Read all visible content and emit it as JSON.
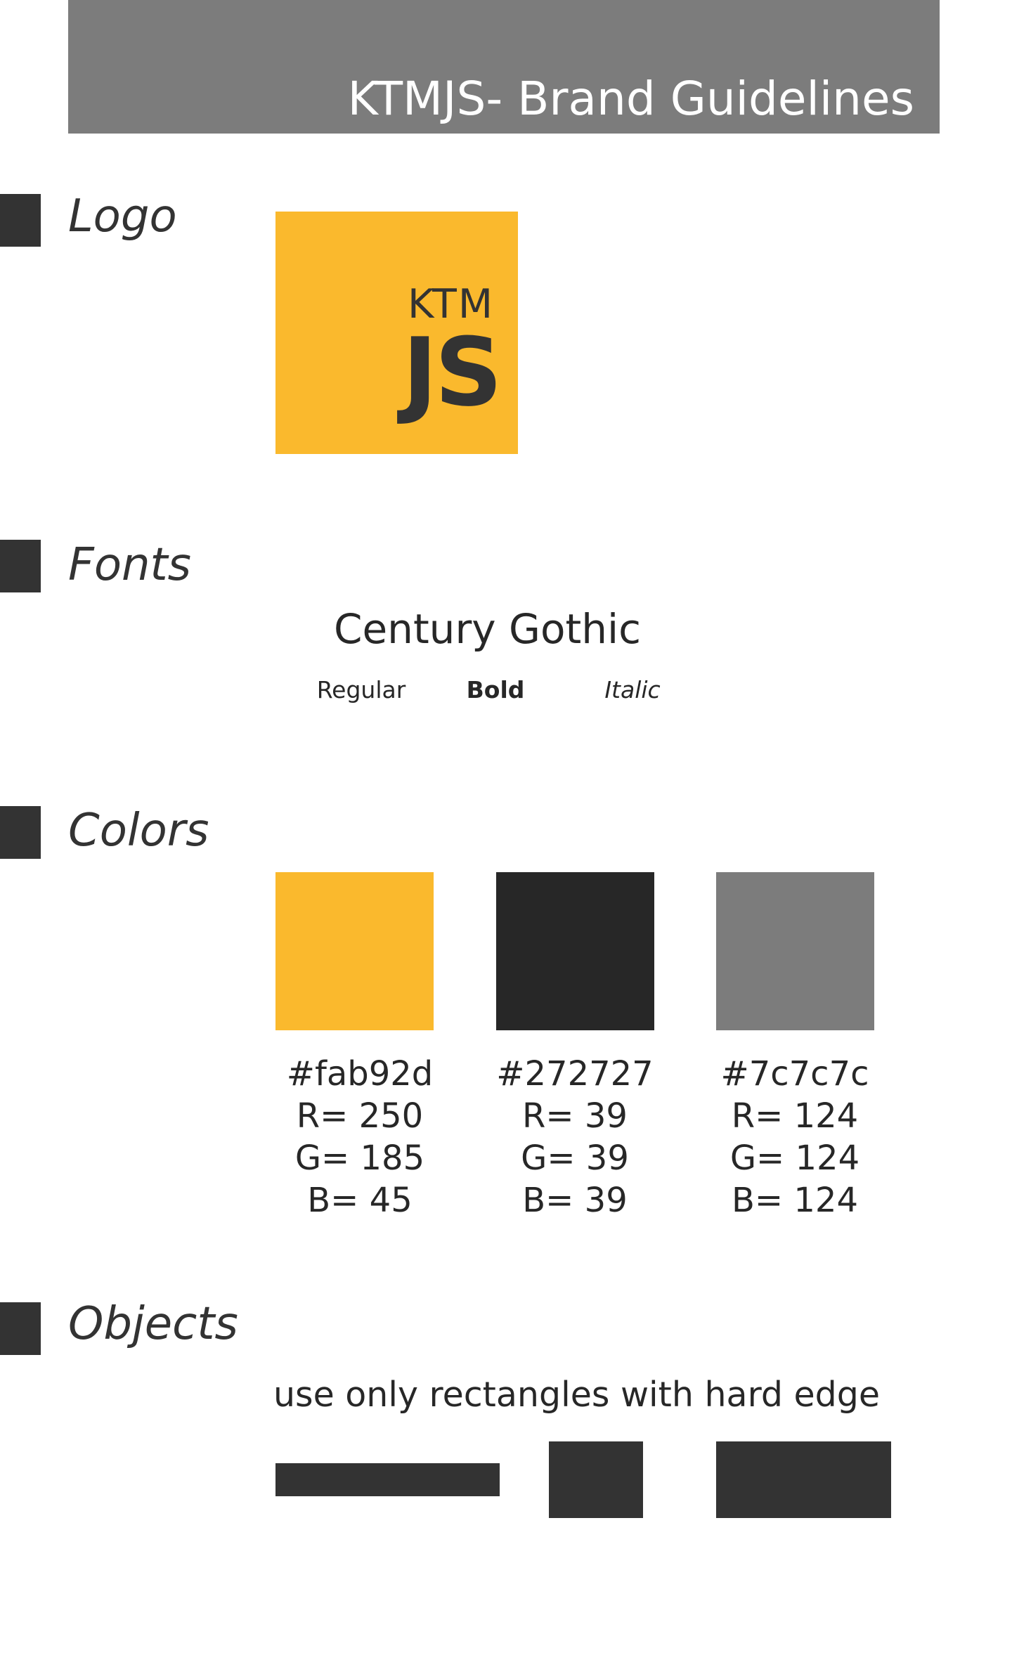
{
  "header": {
    "title": "KTMJS- Brand Guidelines"
  },
  "sections": {
    "logo": "Logo",
    "fonts": "Fonts",
    "colors": "Colors",
    "objects": "Objects"
  },
  "logo": {
    "line1": "KTM",
    "line2": "JS",
    "background": "#fab92d",
    "text_color": "#333333"
  },
  "fonts": {
    "name": "Century Gothic",
    "styles": [
      "Regular",
      "Bold",
      "Italic"
    ]
  },
  "colors": [
    {
      "hex": "#fab92d",
      "r": "R= 250",
      "g": "G= 185",
      "b": "B= 45"
    },
    {
      "hex": "#272727",
      "r": "R= 39",
      "g": "G= 39",
      "b": "B= 39"
    },
    {
      "hex": "#7c7c7c",
      "r": "R= 124",
      "g": "G= 124",
      "b": "B= 124"
    }
  ],
  "objects": {
    "description": "use only rectangles with hard edge",
    "shape_color": "#333333"
  }
}
